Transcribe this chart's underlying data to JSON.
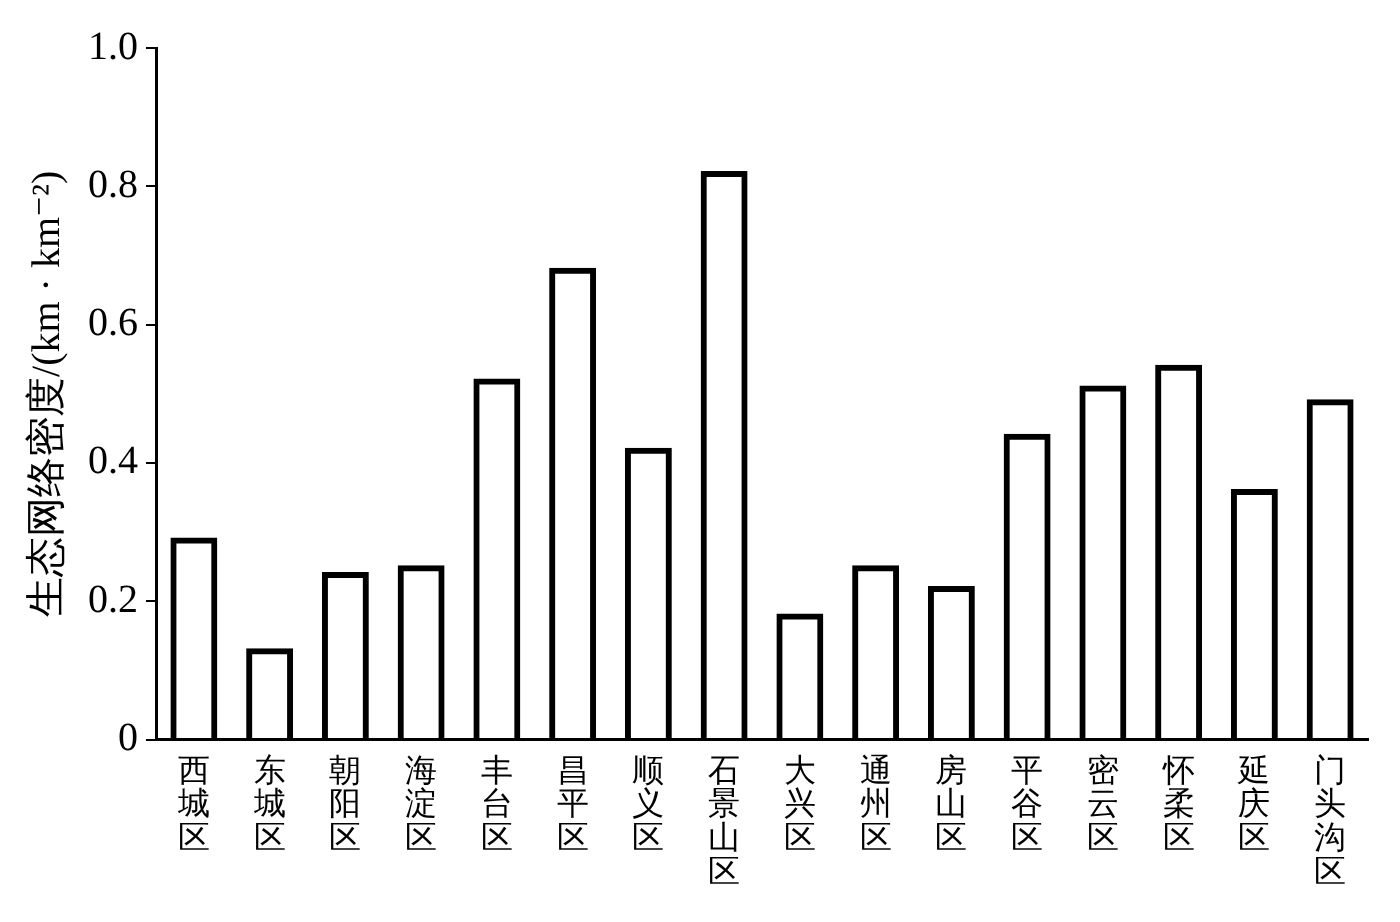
{
  "chart_data": {
    "type": "bar",
    "ylabel": "生态网络密度/(km · km⁻²)",
    "categories": [
      "西城区",
      "东城区",
      "朝阳区",
      "海淀区",
      "丰台区",
      "昌平区",
      "顺义区",
      "石景山区",
      "大兴区",
      "通州区",
      "房山区",
      "平谷区",
      "密云区",
      "怀柔区",
      "延庆区",
      "门头沟区"
    ],
    "values": [
      0.29,
      0.13,
      0.24,
      0.25,
      0.52,
      0.68,
      0.42,
      0.82,
      0.18,
      0.25,
      0.22,
      0.44,
      0.51,
      0.54,
      0.36,
      0.49
    ],
    "color": "#000000",
    "ylim": [
      0,
      1.0
    ],
    "yticks": [
      {
        "value": 0,
        "label": "0"
      },
      0.2,
      0.4,
      0.6,
      0.8,
      {
        "value": 1.0,
        "label": "1.0"
      }
    ],
    "grid": false,
    "legend": false
  }
}
